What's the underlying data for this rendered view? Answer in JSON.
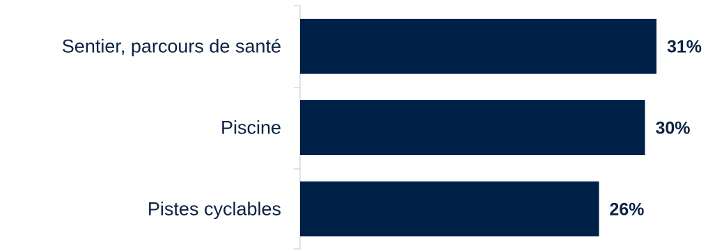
{
  "chart_data": {
    "type": "bar",
    "orientation": "horizontal",
    "categories": [
      "Sentier, parcours de santé",
      "Piscine",
      "Pistes cyclables"
    ],
    "values": [
      31,
      30,
      26
    ],
    "value_labels": [
      "31%",
      "30%",
      "26%"
    ],
    "unit": "%",
    "xlim": [
      0,
      31
    ],
    "grid": false,
    "legend": "none"
  },
  "colors": {
    "bar": "#002147",
    "text": "#0b2243",
    "axis": "#d9d9d9"
  }
}
